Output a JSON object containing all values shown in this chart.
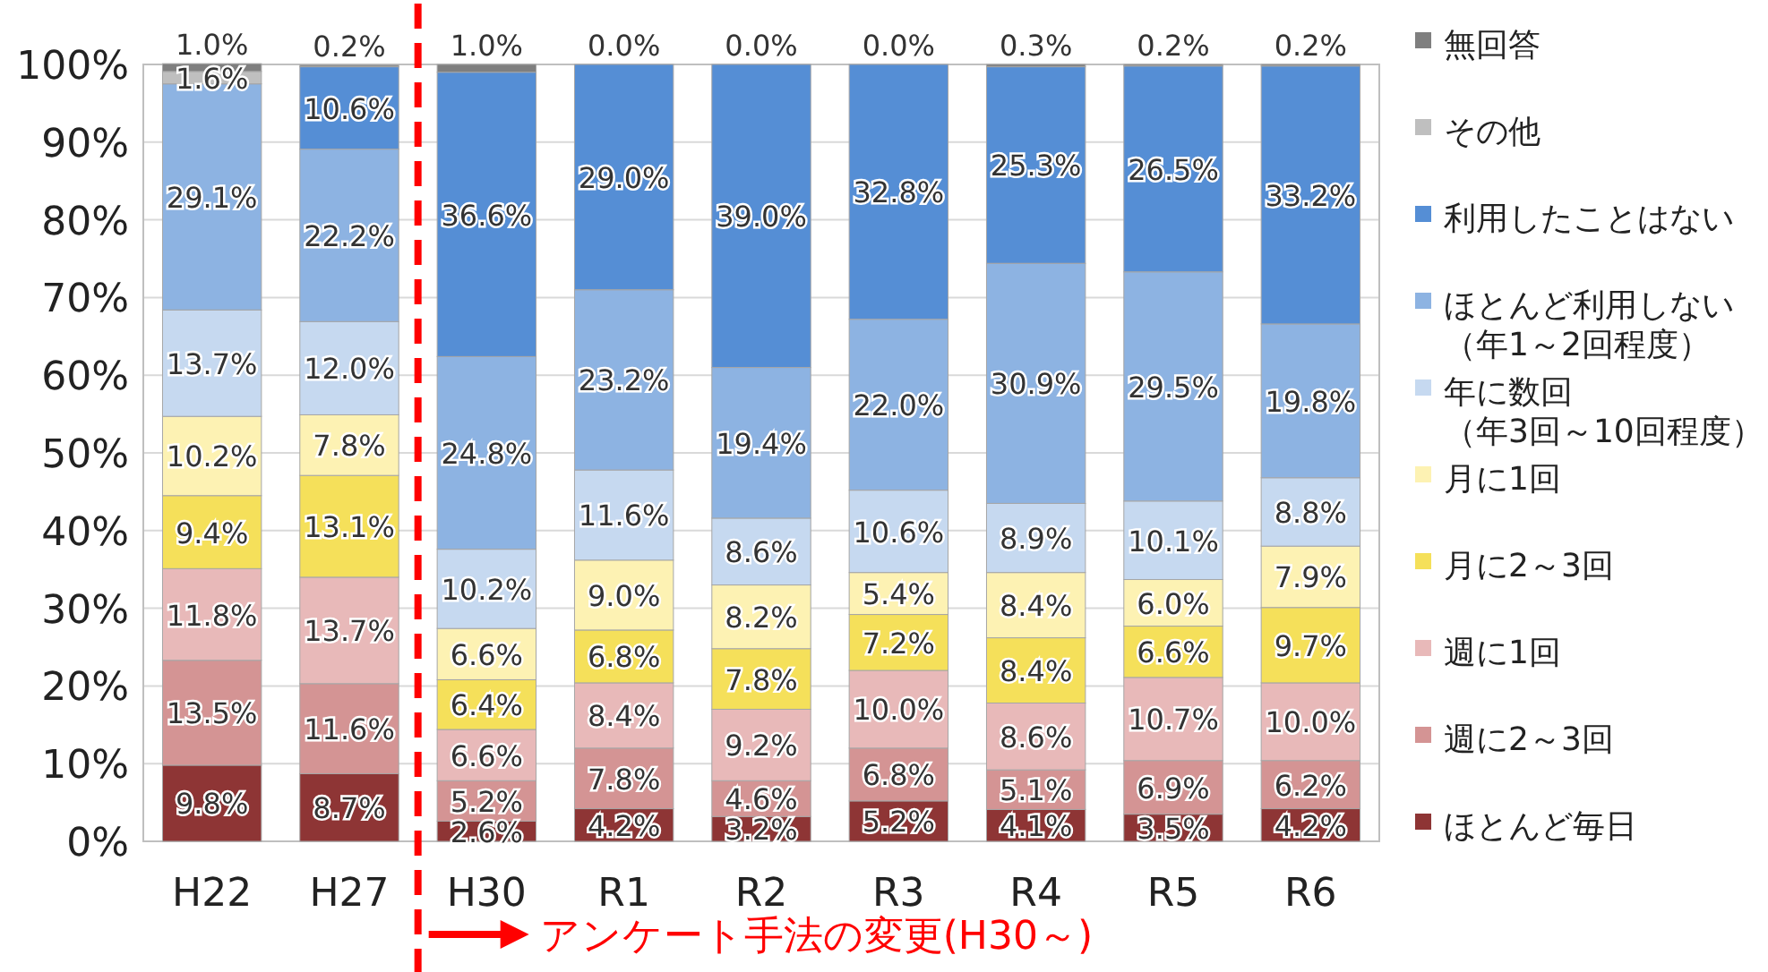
{
  "chart_data": {
    "type": "bar",
    "stacked": true,
    "categories": [
      "H22",
      "H27",
      "H30",
      "R1",
      "R2",
      "R3",
      "R4",
      "R5",
      "R6"
    ],
    "series": [
      {
        "name": "ほとんど毎日",
        "color": "#8e3535",
        "values": [
          9.8,
          8.7,
          2.6,
          4.2,
          3.2,
          5.2,
          4.1,
          3.5,
          4.2
        ],
        "value_labels": [
          "9.8%",
          "8.7%",
          "2.6%",
          "4.2%",
          "3.2%",
          "5.2%",
          "4.1%",
          "3.5%",
          "4.2%"
        ]
      },
      {
        "name": "週に2～3回",
        "color": "#d49494",
        "values": [
          13.5,
          11.6,
          5.2,
          7.8,
          4.6,
          6.8,
          5.1,
          6.9,
          6.2
        ],
        "value_labels": [
          "13.5%",
          "11.6%",
          "5.2%",
          "7.8%",
          "4.6%",
          "6.8%",
          "5.1%",
          "6.9%",
          "6.2%"
        ]
      },
      {
        "name": "週に1回",
        "color": "#e8b9b9",
        "values": [
          11.8,
          13.7,
          6.6,
          8.4,
          9.2,
          10.0,
          8.6,
          10.7,
          10.0
        ],
        "value_labels": [
          "11.8%",
          "13.7%",
          "6.6%",
          "8.4%",
          "9.2%",
          "10.0%",
          "8.6%",
          "10.7%",
          "10.0%"
        ]
      },
      {
        "name": "月に2～3回",
        "color": "#f5e05a",
        "values": [
          9.4,
          13.1,
          6.4,
          6.8,
          7.8,
          7.2,
          8.4,
          6.6,
          9.7
        ],
        "value_labels": [
          "9.4%",
          "13.1%",
          "6.4%",
          "6.8%",
          "7.8%",
          "7.2%",
          "8.4%",
          "6.6%",
          "9.7%"
        ]
      },
      {
        "name": "月に1回",
        "color": "#fdf2b3",
        "values": [
          10.2,
          7.8,
          6.6,
          9.0,
          8.2,
          5.4,
          8.4,
          6.0,
          7.9
        ],
        "value_labels": [
          "10.2%",
          "7.8%",
          "6.6%",
          "9.0%",
          "8.2%",
          "5.4%",
          "8.4%",
          "6.0%",
          "7.9%"
        ]
      },
      {
        "name": "年に数回（年3回～10回程度）",
        "color": "#c6d9f0",
        "values": [
          13.7,
          12.0,
          10.2,
          11.6,
          8.6,
          10.6,
          8.9,
          10.1,
          8.8
        ],
        "value_labels": [
          "13.7%",
          "12.0%",
          "10.2%",
          "11.6%",
          "8.6%",
          "10.6%",
          "8.9%",
          "10.1%",
          "8.8%"
        ]
      },
      {
        "name": "ほとんど利用しない（年1～2回程度）",
        "color": "#8db3e2",
        "values": [
          29.1,
          22.2,
          24.8,
          23.2,
          19.4,
          22.0,
          30.9,
          29.5,
          19.8
        ],
        "value_labels": [
          "29.1%",
          "22.2%",
          "24.8%",
          "23.2%",
          "19.4%",
          "22.0%",
          "30.9%",
          "29.5%",
          "19.8%"
        ]
      },
      {
        "name": "利用したことはない",
        "color": "#558ed5",
        "values": [
          null,
          10.6,
          36.6,
          29.0,
          39.0,
          32.8,
          25.3,
          26.5,
          33.2
        ],
        "value_labels": [
          null,
          "10.6%",
          "36.6%",
          "29.0%",
          "39.0%",
          "32.8%",
          "25.3%",
          "26.5%",
          "33.2%"
        ]
      },
      {
        "name": "その他",
        "color": "#bfbfbf",
        "values": [
          1.6,
          null,
          null,
          null,
          null,
          null,
          null,
          null,
          null
        ],
        "value_labels": [
          "1.6%",
          null,
          null,
          null,
          null,
          null,
          null,
          null,
          null
        ]
      },
      {
        "name": "無回答",
        "color": "#7f7f7f",
        "values": [
          1.0,
          0.2,
          1.0,
          0.0,
          0.0,
          0.0,
          0.3,
          0.2,
          0.2
        ],
        "value_labels": [
          "1.0%",
          "0.2%",
          "1.0%",
          "0.0%",
          "0.0%",
          "0.0%",
          "0.3%",
          "0.2%",
          "0.2%"
        ]
      }
    ],
    "ylim": [
      0,
      100
    ],
    "yticks": [
      {
        "value": 0,
        "label": "0%"
      },
      {
        "value": 10,
        "label": "10%"
      },
      {
        "value": 20,
        "label": "20%"
      },
      {
        "value": 30,
        "label": "30%"
      },
      {
        "value": 40,
        "label": "40%"
      },
      {
        "value": 50,
        "label": "50%"
      },
      {
        "value": 60,
        "label": "60%"
      },
      {
        "value": 70,
        "label": "70%"
      },
      {
        "value": 80,
        "label": "80%"
      },
      {
        "value": 90,
        "label": "90%"
      },
      {
        "value": 100,
        "label": "100%"
      }
    ],
    "grid": "y",
    "legend": "right",
    "ref_lines": [
      {
        "axis": "x",
        "value": "H30",
        "label": "アンケート手法の変更(H30～)",
        "color": "#ff0000",
        "line_style": "dashed"
      }
    ]
  }
}
